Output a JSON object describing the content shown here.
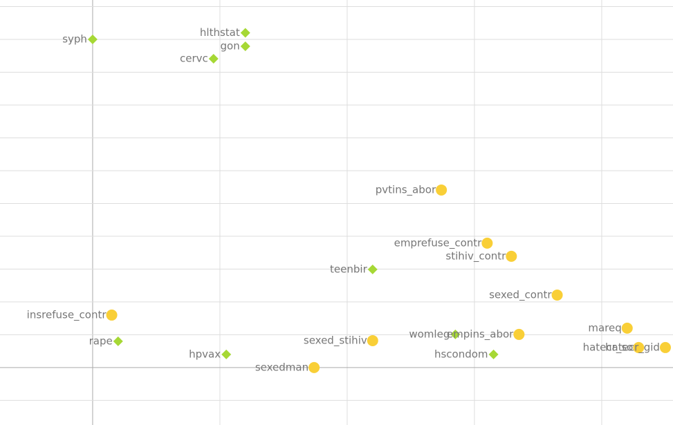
{
  "chart_data": {
    "type": "scatter",
    "xlim": [
      -0.728,
      4.56
    ],
    "ylim": [
      -1.75,
      11.2
    ],
    "xticks": [
      0,
      1,
      2,
      3,
      4
    ],
    "yticks": [
      -1,
      0,
      1,
      2,
      3,
      4,
      5,
      6,
      7,
      8,
      9,
      10,
      11
    ],
    "grid": true,
    "series": [
      {
        "color": "#a6d835",
        "marker": "diamond",
        "labels": [
          "syph",
          "hlthstat",
          "gon",
          "cervc",
          "teenbir",
          "rape",
          "hpvax",
          "womleg",
          "hscondom"
        ],
        "x": [
          0,
          1.2,
          1.2,
          0.95,
          2.2,
          0.2,
          1.05,
          2.85,
          3.15
        ],
        "values": [
          10.0,
          10.2,
          9.79,
          9.41,
          2.99,
          0.8,
          0.4,
          1.01,
          0.4
        ]
      },
      {
        "color": "#f9cf37",
        "marker": "circle",
        "labels": [
          "pvtins_abor",
          "emprefuse_contr",
          "stihiv_contr",
          "sexed_contr",
          "insrefuse_contr",
          "sexed_stihiv",
          "sexedman",
          "empins_abor",
          "mareq",
          "hatecr_so",
          "hatecr_gid"
        ],
        "x": [
          2.74,
          3.1,
          3.29,
          3.65,
          0.15,
          2.2,
          1.74,
          3.35,
          4.2,
          4.29,
          4.5
        ],
        "values": [
          5.41,
          3.79,
          3.39,
          2.21,
          1.6,
          0.82,
          0.0,
          1.01,
          1.2,
          0.61,
          0.61
        ]
      }
    ]
  }
}
